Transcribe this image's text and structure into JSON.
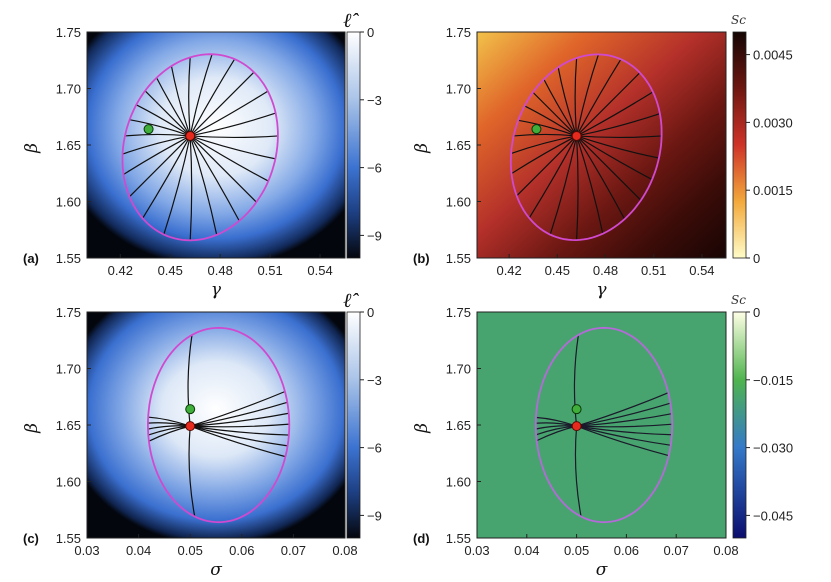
{
  "chart_data": [
    {
      "type": "heatmap",
      "panel_label": "(a)",
      "xlabel": "γ",
      "ylabel": "β",
      "xlim": [
        0.4,
        0.555
      ],
      "ylim": [
        1.55,
        1.75
      ],
      "xticks": [
        0.42,
        0.45,
        0.48,
        0.51,
        0.54
      ],
      "xtick_labels": [
        "0.42",
        "0.45",
        "0.48",
        "0.51",
        "0.54"
      ],
      "yticks": [
        1.55,
        1.6,
        1.65,
        1.7,
        1.75
      ],
      "ytick_labels": [
        "1.55",
        "1.60",
        "1.65",
        "1.70",
        "1.75"
      ],
      "colorbar_label": "ℓ̂",
      "colorbar_range": [
        -10,
        0
      ],
      "colorbar_ticks": [
        0,
        -3,
        -6,
        -9
      ],
      "colorbar_tick_labels": [
        "0",
        "−3",
        "−6",
        "−9"
      ],
      "colormap": "white-blue-black",
      "red_point": {
        "x": 0.462,
        "y": 1.658
      },
      "green_point": {
        "x": 0.437,
        "y": 1.664
      },
      "contour": {
        "center": [
          0.468,
          1.648
        ],
        "rx": 0.0455,
        "ry": 0.0838,
        "tilt_deg": 18,
        "color": "#d04ad0"
      },
      "ray_count": 24
    },
    {
      "type": "heatmap",
      "panel_label": "(b)",
      "xlabel": "γ",
      "ylabel": "β",
      "xlim": [
        0.4,
        0.555
      ],
      "ylim": [
        1.55,
        1.75
      ],
      "xticks": [
        0.42,
        0.45,
        0.48,
        0.51,
        0.54
      ],
      "xtick_labels": [
        "0.42",
        "0.45",
        "0.48",
        "0.51",
        "0.54"
      ],
      "yticks": [
        1.55,
        1.6,
        1.65,
        1.7,
        1.75
      ],
      "ytick_labels": [
        "1.55",
        "1.60",
        "1.65",
        "1.70",
        "1.75"
      ],
      "colorbar_label": "Sc",
      "colorbar_range": [
        0,
        0.005
      ],
      "colorbar_ticks": [
        0.0045,
        0.003,
        0.0015,
        0
      ],
      "colorbar_tick_labels": [
        "0.0045",
        "0.0030",
        "0.0015",
        "0"
      ],
      "colormap": "lightyellow-orange-red-black",
      "red_point": {
        "x": 0.462,
        "y": 1.658
      },
      "green_point": {
        "x": 0.437,
        "y": 1.664
      },
      "contour": {
        "center": [
          0.468,
          1.648
        ],
        "rx": 0.0455,
        "ry": 0.0838,
        "tilt_deg": 18,
        "color": "#d04ad0"
      },
      "ray_count": 24
    },
    {
      "type": "heatmap",
      "panel_label": "(c)",
      "xlabel": "σ",
      "ylabel": "β",
      "xlim": [
        0.03,
        0.08
      ],
      "ylim": [
        1.55,
        1.75
      ],
      "xticks": [
        0.03,
        0.04,
        0.05,
        0.06,
        0.07,
        0.08
      ],
      "xtick_labels": [
        "0.03",
        "0.04",
        "0.05",
        "0.06",
        "0.07",
        "0.08"
      ],
      "yticks": [
        1.55,
        1.6,
        1.65,
        1.7,
        1.75
      ],
      "ytick_labels": [
        "1.55",
        "1.60",
        "1.65",
        "1.70",
        "1.75"
      ],
      "colorbar_label": "ℓ̂",
      "colorbar_range": [
        -10,
        0
      ],
      "colorbar_ticks": [
        0,
        -3,
        -6,
        -9
      ],
      "colorbar_tick_labels": [
        "0",
        "−3",
        "−6",
        "−9"
      ],
      "colormap": "white-blue-black",
      "red_point": {
        "x": 0.05,
        "y": 1.649
      },
      "green_point": {
        "x": 0.05,
        "y": 1.664
      },
      "contour": {
        "center": [
          0.0555,
          1.65
        ],
        "rx": 0.0137,
        "ry": 0.086,
        "tilt_deg": 0,
        "color": "#d04ad0"
      },
      "ray_count": 14
    },
    {
      "type": "heatmap",
      "panel_label": "(d)",
      "xlabel": "σ",
      "ylabel": "β",
      "xlim": [
        0.03,
        0.08
      ],
      "ylim": [
        1.55,
        1.75
      ],
      "xticks": [
        0.03,
        0.04,
        0.05,
        0.06,
        0.07,
        0.08
      ],
      "xtick_labels": [
        "0.03",
        "0.04",
        "0.05",
        "0.06",
        "0.07",
        "0.08"
      ],
      "yticks": [
        1.55,
        1.6,
        1.65,
        1.7,
        1.75
      ],
      "ytick_labels": [
        "1.55",
        "1.60",
        "1.65",
        "1.70",
        "1.75"
      ],
      "colorbar_label": "Sc",
      "colorbar_range": [
        -0.05,
        0
      ],
      "colorbar_ticks": [
        0,
        -0.015,
        -0.03,
        -0.045
      ],
      "colorbar_tick_labels": [
        "0",
        "−0.015",
        "−0.030",
        "−0.045"
      ],
      "colormap": "navy-blue-green-lightyellow",
      "uniform_value": -0.019,
      "red_point": {
        "x": 0.05,
        "y": 1.649
      },
      "green_point": {
        "x": 0.05,
        "y": 1.664
      },
      "contour": {
        "center": [
          0.0555,
          1.65
        ],
        "rx": 0.0137,
        "ry": 0.086,
        "tilt_deg": 0,
        "color": "#b46ad8"
      },
      "ray_count": 14
    }
  ]
}
